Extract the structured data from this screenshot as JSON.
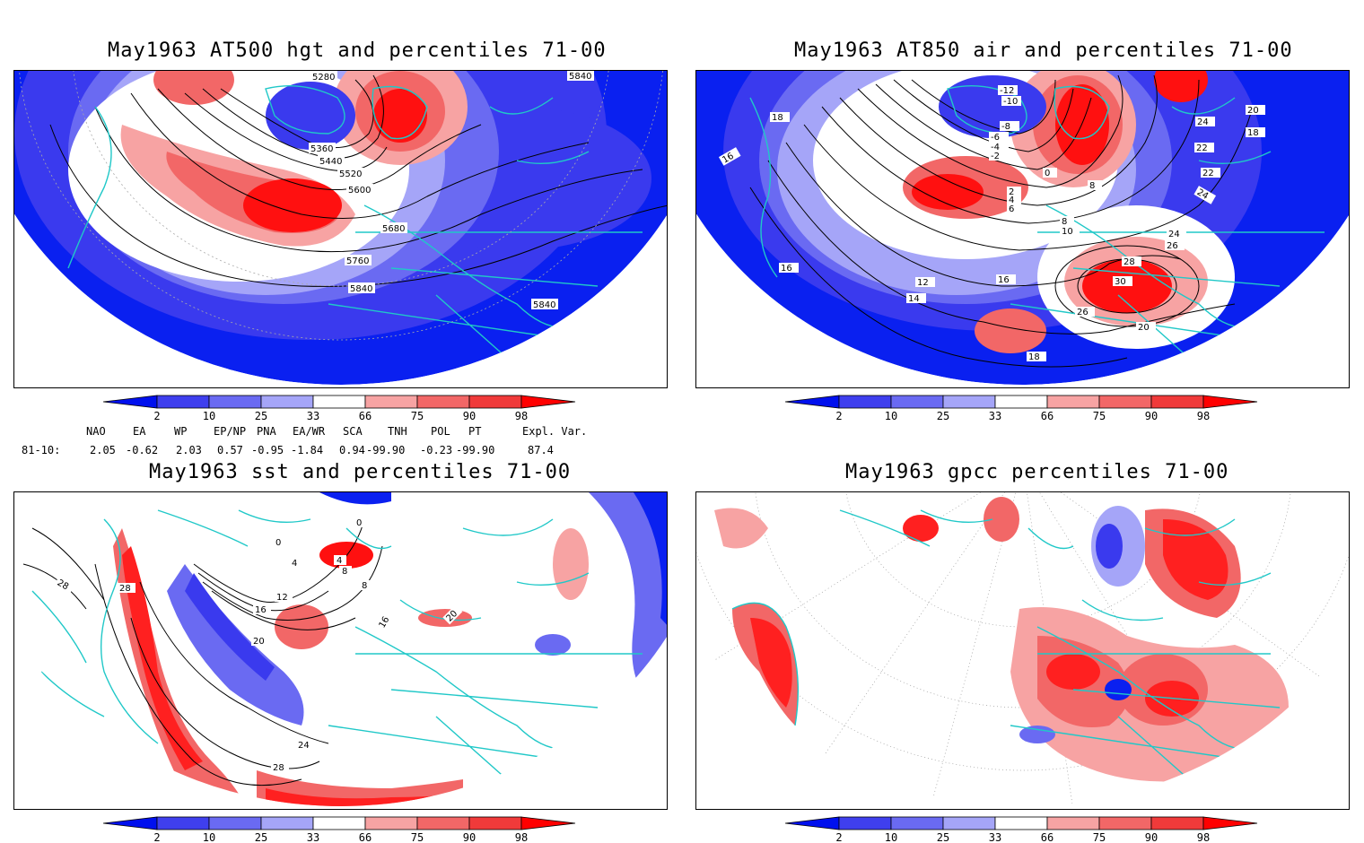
{
  "panels": [
    {
      "id": "hgt500",
      "title": "May1963 AT500 hgt and percentiles 71-00",
      "contour_labels": [
        "5280",
        "5360",
        "5440",
        "5520",
        "5600",
        "5680",
        "5760",
        "5840",
        "5840",
        "5840"
      ]
    },
    {
      "id": "air850",
      "title": "May1963 AT850 air and percentiles 71-00",
      "contour_labels": [
        "-12",
        "-10",
        "-8",
        "-6",
        "-4",
        "-2",
        "0",
        "2",
        "4",
        "6",
        "8",
        "8",
        "10",
        "12",
        "14",
        "16",
        "16",
        "16",
        "18",
        "18",
        "18",
        "20",
        "20",
        "22",
        "22",
        "24",
        "24",
        "24",
        "26",
        "26",
        "28",
        "30"
      ]
    },
    {
      "id": "sst",
      "title": "May1963 sst and percentiles 71-00",
      "contour_labels": [
        "0",
        "0",
        "4",
        "4",
        "8",
        "8",
        "12",
        "16",
        "16",
        "20",
        "20",
        "24",
        "28",
        "28",
        "28"
      ]
    },
    {
      "id": "gpcc",
      "title": "May1963 gpcc percentiles 71-00",
      "contour_labels": []
    }
  ],
  "colorbar": {
    "labels": [
      "2",
      "10",
      "25",
      "33",
      "66",
      "75",
      "90",
      "98"
    ],
    "colors": [
      "#0010ee",
      "#3f3fee",
      "#6a6af2",
      "#a5a5f8",
      "#ffffff",
      "#f7a3a3",
      "#f26767",
      "#f03a3a",
      "#ff0000"
    ]
  },
  "teleconnections": {
    "row_label": "81-10:",
    "headers": [
      "NAO",
      "EA",
      "WP",
      "EP/NP",
      "PNA",
      "EA/WR",
      "SCA",
      "TNH",
      "POL",
      "PT",
      "Expl. Var."
    ],
    "values": [
      "2.05",
      "-0.62",
      "2.03",
      "0.57",
      "-0.95",
      "-1.84",
      "0.94",
      "-99.90",
      "-0.23",
      "-99.90",
      "87.4"
    ]
  },
  "colors": {
    "coastline": "#20c8c8",
    "contour": "#000000",
    "blue_fill": "#0a20f0",
    "red_fill": "#ff1010"
  }
}
